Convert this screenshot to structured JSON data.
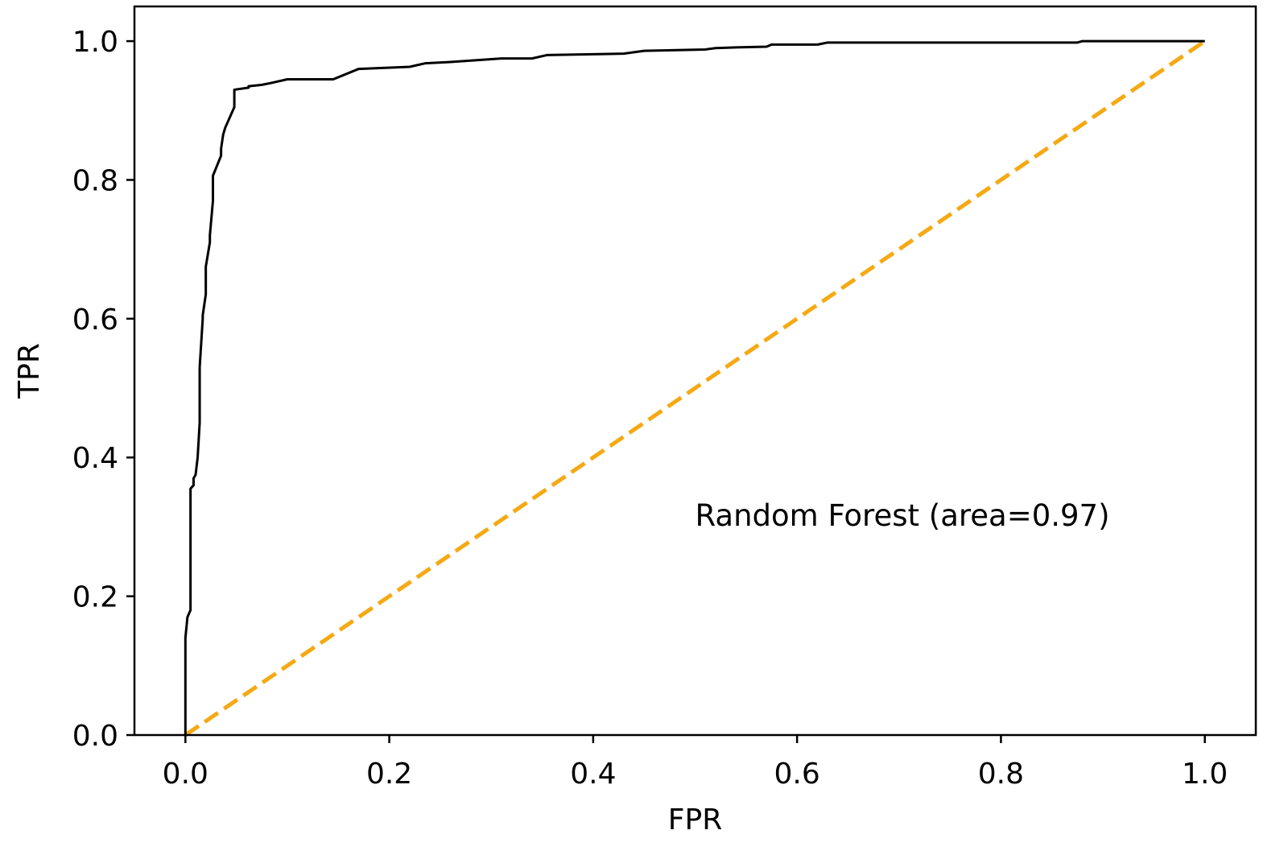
{
  "chart_data": {
    "type": "line",
    "title": "",
    "xlabel": "FPR",
    "ylabel": "TPR",
    "xlim": [
      -0.05,
      1.05
    ],
    "ylim": [
      0.0,
      1.05
    ],
    "xticks": [
      0.0,
      0.2,
      0.4,
      0.6,
      0.8,
      1.0
    ],
    "xtick_labels": [
      "0.0",
      "0.2",
      "0.4",
      "0.6",
      "0.8",
      "1.0"
    ],
    "yticks": [
      0.0,
      0.2,
      0.4,
      0.6,
      0.8,
      1.0
    ],
    "ytick_labels": [
      "0.0",
      "0.2",
      "0.4",
      "0.6",
      "0.8",
      "1.0"
    ],
    "grid": false,
    "annotation": "Random Forest (area=0.97)",
    "series": [
      {
        "color": "#000000",
        "style": "solid",
        "x": [
          0.0,
          0.0,
          0.002,
          0.005,
          0.005,
          0.008,
          0.008,
          0.01,
          0.012,
          0.014,
          0.014,
          0.017,
          0.017,
          0.02,
          0.02,
          0.024,
          0.024,
          0.027,
          0.027,
          0.035,
          0.035,
          0.037,
          0.039,
          0.048,
          0.048,
          0.062,
          0.062,
          0.075,
          0.085,
          0.1,
          0.145,
          0.17,
          0.22,
          0.235,
          0.26,
          0.31,
          0.34,
          0.355,
          0.43,
          0.45,
          0.51,
          0.52,
          0.54,
          0.57,
          0.575,
          0.62,
          0.63,
          0.875,
          0.88,
          1.0
        ],
        "y": [
          0.0,
          0.14,
          0.17,
          0.18,
          0.355,
          0.36,
          0.37,
          0.375,
          0.4,
          0.45,
          0.53,
          0.6,
          0.605,
          0.635,
          0.675,
          0.71,
          0.72,
          0.77,
          0.806,
          0.835,
          0.845,
          0.865,
          0.875,
          0.905,
          0.93,
          0.933,
          0.935,
          0.937,
          0.94,
          0.945,
          0.945,
          0.96,
          0.963,
          0.968,
          0.97,
          0.975,
          0.975,
          0.98,
          0.982,
          0.986,
          0.988,
          0.99,
          0.991,
          0.992,
          0.995,
          0.995,
          0.998,
          0.998,
          1.0,
          1.0
        ]
      },
      {
        "color": "#f5a914",
        "style": "dashed",
        "x": [
          0.0,
          1.0
        ],
        "y": [
          0.0,
          1.0
        ]
      }
    ]
  }
}
